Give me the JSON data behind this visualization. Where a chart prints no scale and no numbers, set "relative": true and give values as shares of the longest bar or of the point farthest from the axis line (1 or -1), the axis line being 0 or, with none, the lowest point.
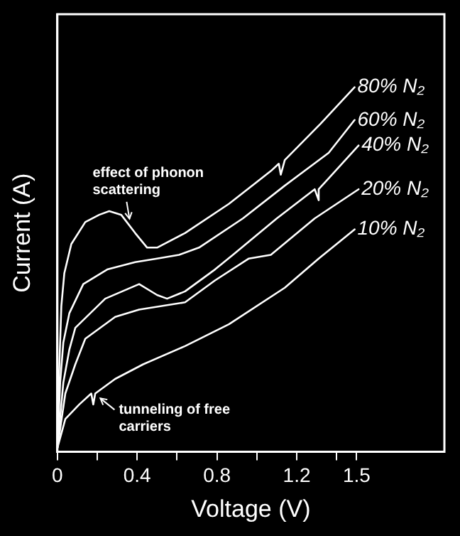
{
  "chart_data": {
    "type": "line",
    "xlabel": "Voltage (V)",
    "ylabel": "Current (A)",
    "relative": true,
    "xlim": [
      0,
      1.94
    ],
    "xticks": [
      0,
      {
        "value": 0.2,
        "label": null
      },
      0.4,
      {
        "value": 0.6,
        "label": null
      },
      0.8,
      {
        "value": 1.0,
        "label": null
      },
      1.2,
      {
        "value": 1.4,
        "label": null
      },
      1.5
    ],
    "grid": false,
    "legend": false,
    "marker": "none",
    "line_style": "solid",
    "annotations": [
      {
        "text": "effect of phonon scattering",
        "x": 0.39,
        "y": 0.6
      },
      {
        "text": "tunneling of free carriers",
        "x": 0.18,
        "y": 0.17
      }
    ],
    "series": [
      {
        "name": "80% N₂",
        "color": "#ffffff",
        "x": [
          0,
          0.007,
          0.02,
          0.035,
          0.07,
          0.14,
          0.21,
          0.26,
          0.32,
          0.39,
          0.45,
          0.5,
          0.64,
          0.86,
          1.07,
          1.11,
          1.12,
          1.14,
          1.32,
          1.49
        ],
        "values": [
          0.01,
          0.19,
          0.4,
          0.49,
          0.57,
          0.63,
          0.65,
          0.66,
          0.65,
          0.6,
          0.56,
          0.56,
          0.6,
          0.68,
          0.77,
          0.79,
          0.76,
          0.8,
          0.9,
          1
        ]
      },
      {
        "name": "60% N₂",
        "color": "#ffffff",
        "x": [
          0,
          0.014,
          0.03,
          0.06,
          0.13,
          0.25,
          0.39,
          0.5,
          0.61,
          0.71,
          0.93,
          1.14,
          1.36,
          1.49
        ],
        "values": [
          0.01,
          0.19,
          0.3,
          0.38,
          0.46,
          0.5,
          0.52,
          0.53,
          0.54,
          0.56,
          0.64,
          0.73,
          0.82,
          0.91
        ]
      },
      {
        "name": "40% N₂",
        "color": "#ffffff",
        "x": [
          0,
          0.03,
          0.06,
          0.09,
          0.24,
          0.41,
          0.5,
          0.55,
          0.64,
          0.79,
          0.88,
          1.1,
          1.29,
          1.31,
          1.31,
          1.51
        ],
        "values": [
          0.01,
          0.19,
          0.28,
          0.34,
          0.42,
          0.46,
          0.43,
          0.42,
          0.44,
          0.5,
          0.54,
          0.64,
          0.72,
          0.69,
          0.72,
          0.84
        ]
      },
      {
        "name": "20% N₂",
        "color": "#ffffff",
        "x": [
          0,
          0.04,
          0.09,
          0.14,
          0.29,
          0.41,
          0.64,
          0.79,
          0.96,
          1.07,
          1.29,
          1.51
        ],
        "values": [
          0.01,
          0.16,
          0.24,
          0.31,
          0.37,
          0.39,
          0.41,
          0.47,
          0.53,
          0.54,
          0.64,
          0.72
        ]
      },
      {
        "name": "10% N₂",
        "color": "#ffffff",
        "x": [
          0,
          0.04,
          0.11,
          0.17,
          0.18,
          0.19,
          0.29,
          0.43,
          0.64,
          0.86,
          1.14,
          1.31,
          1.49
        ],
        "values": [
          0.01,
          0.09,
          0.13,
          0.16,
          0.13,
          0.16,
          0.2,
          0.24,
          0.29,
          0.35,
          0.45,
          0.53,
          0.61
        ]
      }
    ]
  }
}
